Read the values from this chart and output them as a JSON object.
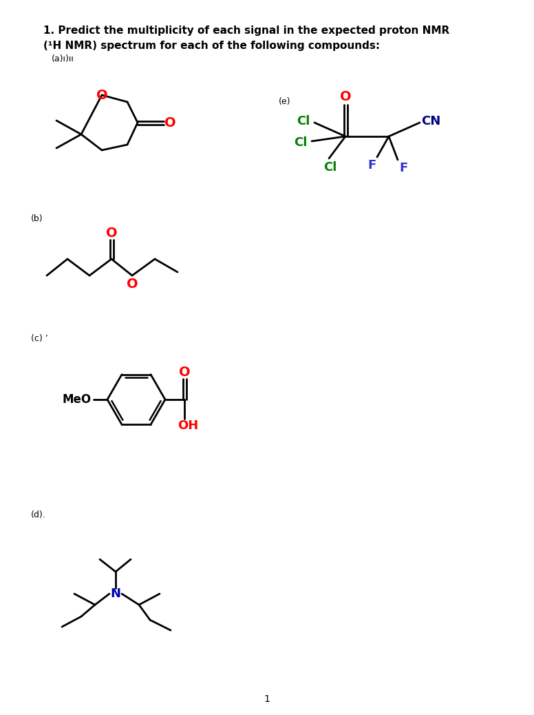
{
  "title_line1": "1. Predict the multiplicity of each signal in the expected proton NMR",
  "title_line2": "(¹H NMR) spectrum for each of the following compounds:",
  "label_a": "(a)ı)ıı",
  "label_b": "(b)",
  "label_c": "(c) ’",
  "label_d": "(d).",
  "label_e": "(e)",
  "page_num": "1",
  "bg_color": "#ffffff",
  "bond_color": "#000000",
  "O_color": "#ff0000",
  "N_color": "#0000bb",
  "Cl_color": "#008000",
  "F_color": "#3333cc",
  "CN_color": "#000080"
}
